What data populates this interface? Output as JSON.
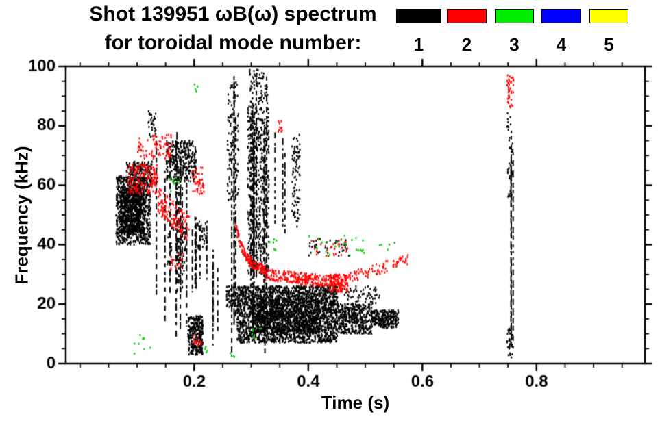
{
  "header": {
    "title_line1": "Shot 139951 ωB(ω) spectrum",
    "title_line2": "for toroidal mode number:"
  },
  "legend": {
    "position": "top-right",
    "modes": [
      {
        "label": "1",
        "color": "#000000"
      },
      {
        "label": "2",
        "color": "#ff0000"
      },
      {
        "label": "3",
        "color": "#00ee00"
      },
      {
        "label": "4",
        "color": "#0000ff"
      },
      {
        "label": "5",
        "color": "#ffff00"
      }
    ]
  },
  "chart_data": {
    "type": "scatter",
    "title": "Shot 139951 ωB(ω) spectrum",
    "subtitle": "for toroidal mode number: 1 2 3 4 5",
    "xlabel": "Time (s)",
    "ylabel": "Frequency (kHz)",
    "xlim": [
      -0.025,
      0.99
    ],
    "ylim": [
      0,
      100
    ],
    "grid": false,
    "x_major_ticks": [
      0.2,
      0.4,
      0.6,
      0.8
    ],
    "x_tick_labels": [
      "0.2",
      "0.4",
      "0.6",
      "0.8"
    ],
    "x_minor_step": 0.05,
    "y_major_ticks": [
      0,
      20,
      40,
      60,
      80,
      100
    ],
    "y_tick_labels": [
      "0",
      "20",
      "40",
      "60",
      "80",
      "100"
    ],
    "y_minor_step": 5,
    "series": [
      {
        "name": "toroidal mode n=1",
        "color": "#000000",
        "clusters": [
          {
            "shape": "blob",
            "t": [
              0.062,
              0.122
            ],
            "f": [
              40,
              63
            ],
            "n": 900
          },
          {
            "shape": "blob",
            "t": [
              0.07,
              0.106
            ],
            "f": [
              44,
              59
            ],
            "n": 500
          },
          {
            "shape": "blob",
            "t": [
              0.08,
              0.126
            ],
            "f": [
              60,
              68
            ],
            "n": 160
          },
          {
            "shape": "blob",
            "t": [
              0.118,
              0.132
            ],
            "f": [
              76,
              85
            ],
            "n": 30
          },
          {
            "shape": "streaks",
            "t": [
              0.13,
              0.19
            ],
            "f": [
              8,
              78
            ],
            "n": 10
          },
          {
            "shape": "blob",
            "t": [
              0.15,
              0.202
            ],
            "f": [
              61,
              75
            ],
            "n": 300
          },
          {
            "shape": "blob",
            "t": [
              0.152,
              0.185
            ],
            "f": [
              30,
              46
            ],
            "n": 60
          },
          {
            "shape": "blob",
            "t": [
              0.188,
              0.214
            ],
            "f": [
              3,
              16
            ],
            "n": 280
          },
          {
            "shape": "streaks",
            "t": [
              0.19,
              0.226
            ],
            "f": [
              20,
              50
            ],
            "n": 6
          },
          {
            "shape": "blob",
            "t": [
              0.205,
              0.222
            ],
            "f": [
              38,
              48
            ],
            "n": 40
          },
          {
            "shape": "streaks",
            "t": [
              0.231,
              0.243
            ],
            "f": [
              1,
              42
            ],
            "n": 3
          },
          {
            "shape": "streaks",
            "t": [
              0.257,
              0.277
            ],
            "f": [
              1,
              97
            ],
            "n": 4
          },
          {
            "shape": "blob",
            "t": [
              0.257,
              0.277
            ],
            "f": [
              55,
              95
            ],
            "n": 110
          },
          {
            "shape": "blob",
            "t": [
              0.255,
              0.273
            ],
            "f": [
              19,
              26
            ],
            "n": 60
          },
          {
            "shape": "streaks",
            "t": [
              0.292,
              0.327
            ],
            "f": [
              1,
              99
            ],
            "n": 9
          },
          {
            "shape": "blob",
            "t": [
              0.292,
              0.33
            ],
            "f": [
              30,
              86
            ],
            "n": 520
          },
          {
            "shape": "blob",
            "t": [
              0.295,
              0.328
            ],
            "f": [
              86,
              99
            ],
            "n": 70
          },
          {
            "shape": "blob",
            "t": [
              0.274,
              0.45
            ],
            "f": [
              7,
              26
            ],
            "n": 2300
          },
          {
            "shape": "blob",
            "t": [
              0.3,
              0.42
            ],
            "f": [
              10,
              22
            ],
            "n": 800
          },
          {
            "shape": "blob",
            "t": [
              0.45,
              0.51
            ],
            "f": [
              10,
              20
            ],
            "n": 420
          },
          {
            "shape": "blob",
            "t": [
              0.51,
              0.557
            ],
            "f": [
              12,
              18
            ],
            "n": 240
          },
          {
            "shape": "streaks",
            "t": [
              0.338,
              0.362
            ],
            "f": [
              40,
              78
            ],
            "n": 3
          },
          {
            "shape": "blob",
            "t": [
              0.37,
              0.384
            ],
            "f": [
              46,
              77
            ],
            "n": 90
          },
          {
            "shape": "blob",
            "t": [
              0.4,
              0.47
            ],
            "f": [
              36,
              42
            ],
            "n": 35
          },
          {
            "shape": "blob",
            "t": [
              0.46,
              0.525
            ],
            "f": [
              20,
              26
            ],
            "n": 60
          },
          {
            "shape": "streaks",
            "t": [
              0.746,
              0.76
            ],
            "f": [
              2,
              88
            ],
            "n": 3
          },
          {
            "shape": "blob",
            "t": [
              0.747,
              0.758
            ],
            "f": [
              55,
              85
            ],
            "n": 50
          },
          {
            "shape": "blob",
            "t": [
              0.747,
              0.757
            ],
            "f": [
              2,
              12
            ],
            "n": 35
          }
        ]
      },
      {
        "name": "toroidal mode n=2",
        "color": "#ff0000",
        "clusters": [
          {
            "shape": "blob",
            "t": [
              0.082,
              0.135
            ],
            "f": [
              57,
              67
            ],
            "n": 160
          },
          {
            "shape": "blob",
            "t": [
              0.1,
              0.16
            ],
            "f": [
              69,
              77
            ],
            "n": 80
          },
          {
            "shape": "trend",
            "t": [
              0.135,
              0.19
            ],
            "f_start": 55,
            "f_end": 45,
            "jitter": 9,
            "n": 130
          },
          {
            "shape": "blob",
            "t": [
              0.195,
              0.216
            ],
            "f": [
              57,
              66
            ],
            "n": 45
          },
          {
            "shape": "blob",
            "t": [
              0.197,
              0.212
            ],
            "f": [
              6,
              10
            ],
            "n": 16
          },
          {
            "shape": "blob",
            "t": [
              0.155,
              0.182
            ],
            "f": [
              31,
              37
            ],
            "n": 18
          },
          {
            "shape": "trend",
            "t": [
              0.272,
              0.322
            ],
            "f_start": 46,
            "f_end": 31,
            "jitter": 3,
            "n": 170,
            "decay": true
          },
          {
            "shape": "trend",
            "t": [
              0.322,
              0.46
            ],
            "f_start": 30,
            "f_end": 27,
            "jitter": 4,
            "n": 280
          },
          {
            "shape": "blob",
            "t": [
              0.435,
              0.468
            ],
            "f": [
              24,
              30
            ],
            "n": 90
          },
          {
            "shape": "trend",
            "t": [
              0.46,
              0.575
            ],
            "f_start": 28,
            "f_end": 35,
            "jitter": 4,
            "n": 90
          },
          {
            "shape": "blob",
            "t": [
              0.4,
              0.47
            ],
            "f": [
              36,
              42
            ],
            "n": 30
          },
          {
            "shape": "blob",
            "t": [
              0.345,
              0.353
            ],
            "f": [
              78,
              82
            ],
            "n": 10
          },
          {
            "shape": "blob",
            "t": [
              0.747,
              0.759
            ],
            "f": [
              86,
              97
            ],
            "n": 40
          }
        ]
      },
      {
        "name": "toroidal mode n=3",
        "color": "#00cc00",
        "clusters": [
          {
            "shape": "blob",
            "t": [
              0.09,
              0.122
            ],
            "f": [
              3,
              10
            ],
            "n": 8
          },
          {
            "shape": "blob",
            "t": [
              0.155,
              0.176
            ],
            "f": [
              57,
              63
            ],
            "n": 10
          },
          {
            "shape": "blob",
            "t": [
              0.198,
              0.205
            ],
            "f": [
              91,
              95
            ],
            "n": 5
          },
          {
            "shape": "blob",
            "t": [
              0.21,
              0.222
            ],
            "f": [
              2,
              6
            ],
            "n": 5
          },
          {
            "shape": "blob",
            "t": [
              0.4,
              0.5
            ],
            "f": [
              36,
              43
            ],
            "n": 26
          },
          {
            "shape": "blob",
            "t": [
              0.3,
              0.316
            ],
            "f": [
              8,
              12
            ],
            "n": 6
          },
          {
            "shape": "blob",
            "t": [
              0.33,
              0.346
            ],
            "f": [
              38,
              42
            ],
            "n": 6
          },
          {
            "shape": "blob",
            "t": [
              0.52,
              0.552
            ],
            "f": [
              38,
              41
            ],
            "n": 5
          },
          {
            "shape": "blob",
            "t": [
              0.26,
              0.27
            ],
            "f": [
              2,
              5
            ],
            "n": 4
          }
        ]
      },
      {
        "name": "toroidal mode n=4",
        "color": "#0000ff",
        "clusters": []
      },
      {
        "name": "toroidal mode n=5",
        "color": "#ffff00",
        "clusters": []
      }
    ]
  }
}
